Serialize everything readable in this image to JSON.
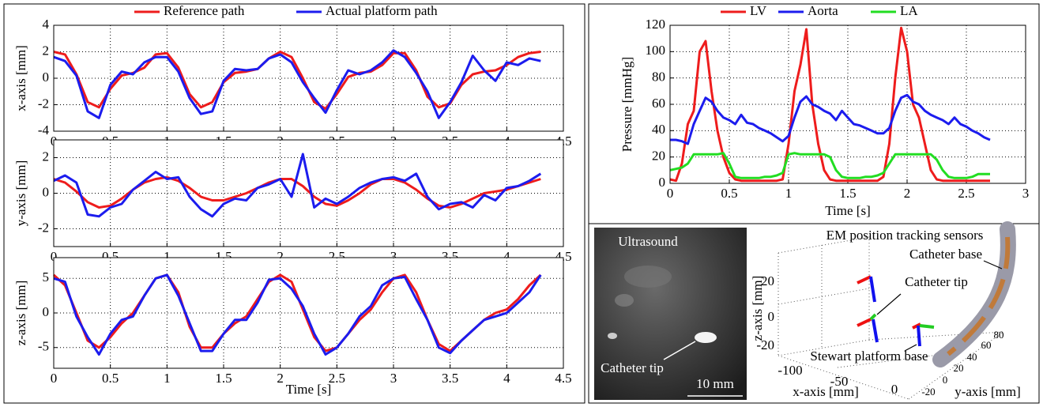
{
  "chart_data": [
    {
      "type": "line",
      "ylabel": "x-axis [mm]",
      "x": [
        0,
        0.1,
        0.2,
        0.3,
        0.4,
        0.5,
        0.6,
        0.7,
        0.8,
        0.9,
        1,
        1.1,
        1.2,
        1.3,
        1.4,
        1.5,
        1.6,
        1.7,
        1.8,
        1.9,
        2,
        2.1,
        2.2,
        2.3,
        2.4,
        2.5,
        2.6,
        2.7,
        2.8,
        2.9,
        3,
        3.1,
        3.2,
        3.3,
        3.4,
        3.5,
        3.6,
        3.7,
        3.8,
        3.9,
        4,
        4.1,
        4.2,
        4.3
      ],
      "series": [
        {
          "name": "Reference path",
          "color": "#ee1c1c",
          "values": [
            2,
            1.8,
            0.3,
            -1.8,
            -2.2,
            -0.8,
            0.2,
            0.4,
            0.8,
            1.8,
            1.9,
            0.8,
            -1.2,
            -2.2,
            -1.8,
            -0.3,
            0.4,
            0.5,
            0.7,
            1.5,
            2,
            1.6,
            0,
            -1.8,
            -2.3,
            -1.2,
            0.1,
            0.4,
            0.5,
            1,
            1.9,
            1.9,
            0.6,
            -1.4,
            -2.2,
            -1.9,
            -0.5,
            0.3,
            0.5,
            0.6,
            1,
            1.6,
            1.9,
            2
          ]
        },
        {
          "name": "Actual platform path",
          "color": "#1c1cee",
          "values": [
            1.6,
            1.3,
            0.2,
            -2.5,
            -3,
            -0.5,
            0.5,
            0.3,
            1.2,
            1.6,
            1.6,
            0.5,
            -1.5,
            -2.7,
            -2.5,
            -0.2,
            0.7,
            0.6,
            0.7,
            1.5,
            1.8,
            1.2,
            -0.3,
            -1.5,
            -2.6,
            -0.9,
            0.6,
            0.3,
            0.6,
            1.2,
            2.1,
            1.6,
            0.4,
            -1,
            -3,
            -1.8,
            -0.3,
            1.7,
            0.6,
            -0.2,
            1.2,
            1,
            1.5,
            1.3
          ]
        }
      ],
      "xlim": [
        0,
        4.5
      ],
      "ylim": [
        -4,
        4
      ],
      "xticks": [
        0,
        0.5,
        1,
        1.5,
        2,
        2.5,
        3,
        3.5,
        4,
        4.5
      ],
      "yticks": [
        -4,
        -2,
        0,
        2,
        4
      ],
      "grid": true
    },
    {
      "type": "line",
      "ylabel": "y-axis [mm]",
      "x": [
        0,
        0.1,
        0.2,
        0.3,
        0.4,
        0.5,
        0.6,
        0.7,
        0.8,
        0.9,
        1,
        1.1,
        1.2,
        1.3,
        1.4,
        1.5,
        1.6,
        1.7,
        1.8,
        1.9,
        2,
        2.1,
        2.2,
        2.3,
        2.4,
        2.5,
        2.6,
        2.7,
        2.8,
        2.9,
        3,
        3.1,
        3.2,
        3.3,
        3.4,
        3.5,
        3.6,
        3.7,
        3.8,
        3.9,
        4,
        4.1,
        4.2,
        4.3
      ],
      "series": [
        {
          "color": "#ee1c1c",
          "values": [
            0.8,
            0.6,
            0.1,
            -0.5,
            -0.8,
            -0.7,
            -0.3,
            0.2,
            0.6,
            0.8,
            0.9,
            0.7,
            0.3,
            -0.2,
            -0.4,
            -0.4,
            -0.2,
            0,
            0.3,
            0.6,
            0.8,
            0.8,
            0.4,
            -0.2,
            -0.6,
            -0.7,
            -0.4,
            0,
            0.5,
            0.8,
            0.8,
            0.6,
            0.2,
            -0.3,
            -0.7,
            -0.8,
            -0.6,
            -0.3,
            0,
            0.1,
            0.2,
            0.4,
            0.6,
            0.8
          ]
        },
        {
          "color": "#1c1cee",
          "values": [
            0.7,
            1,
            0.6,
            -1.2,
            -1.3,
            -0.8,
            -0.6,
            0.2,
            0.7,
            1.2,
            0.8,
            0.9,
            -0.2,
            -0.9,
            -1.3,
            -0.6,
            -0.3,
            -0.4,
            0.3,
            0.5,
            0.8,
            -0.2,
            2.2,
            -0.8,
            -0.3,
            -0.6,
            -0.2,
            0.3,
            0.6,
            0.8,
            0.9,
            0.7,
            1.1,
            -0.2,
            -0.9,
            -0.6,
            -0.5,
            -0.8,
            -0.1,
            -0.4,
            0.3,
            0.4,
            0.7,
            1.1
          ]
        }
      ],
      "xlim": [
        0,
        4.5
      ],
      "ylim": [
        -3,
        3
      ],
      "xticks": [
        0,
        0.5,
        1,
        1.5,
        2,
        2.5,
        3,
        3.5,
        4,
        4.5
      ],
      "yticks": [
        -2,
        0,
        2
      ],
      "grid": true
    },
    {
      "type": "line",
      "ylabel": "z-axis [mm]",
      "xlabel": "Time [s]",
      "x": [
        0,
        0.1,
        0.2,
        0.3,
        0.4,
        0.5,
        0.6,
        0.7,
        0.8,
        0.9,
        1,
        1.1,
        1.2,
        1.3,
        1.4,
        1.5,
        1.6,
        1.7,
        1.8,
        1.9,
        2,
        2.1,
        2.2,
        2.3,
        2.4,
        2.5,
        2.6,
        2.7,
        2.8,
        2.9,
        3,
        3.1,
        3.2,
        3.3,
        3.4,
        3.5,
        3.6,
        3.7,
        3.8,
        3.9,
        4,
        4.1,
        4.2,
        4.3
      ],
      "series": [
        {
          "color": "#ee1c1c",
          "values": [
            5.5,
            4,
            0,
            -4,
            -5,
            -3.5,
            -1.5,
            0,
            2.5,
            5,
            5.5,
            3,
            -2,
            -5,
            -5,
            -3,
            -1.5,
            -0.5,
            2,
            4.5,
            5.5,
            4.5,
            0.5,
            -3.5,
            -5.5,
            -5,
            -3,
            -1,
            0.5,
            3,
            5,
            5.5,
            3,
            -1,
            -4.5,
            -5.5,
            -4,
            -2.5,
            -1,
            0,
            0.5,
            2,
            4,
            5.5
          ]
        },
        {
          "color": "#1c1cee",
          "values": [
            5,
            4.5,
            -0.5,
            -3.5,
            -6,
            -3,
            -1,
            -0.5,
            2.5,
            5,
            5.5,
            2.5,
            -1.5,
            -5.5,
            -5.5,
            -3,
            -1,
            -1,
            1.5,
            4.8,
            5,
            3.5,
            1,
            -3,
            -6,
            -5,
            -3,
            -0.5,
            1,
            4,
            5,
            5.2,
            2,
            -1,
            -5,
            -5.8,
            -4,
            -2.5,
            -1,
            -0.5,
            0,
            1.5,
            3,
            5.5
          ]
        }
      ],
      "xlim": [
        0,
        4.5
      ],
      "ylim": [
        -8,
        8
      ],
      "xticks": [
        0,
        0.5,
        1,
        1.5,
        2,
        2.5,
        3,
        3.5,
        4,
        4.5
      ],
      "yticks": [
        -5,
        0,
        5
      ],
      "grid": true
    },
    {
      "type": "line",
      "ylabel": "Pressure [mmHg]",
      "xlabel": "Time [s]",
      "x": [
        0,
        0.05,
        0.1,
        0.15,
        0.2,
        0.25,
        0.3,
        0.35,
        0.4,
        0.45,
        0.5,
        0.55,
        0.6,
        0.65,
        0.7,
        0.75,
        0.8,
        0.85,
        0.9,
        0.95,
        1,
        1.05,
        1.1,
        1.15,
        1.2,
        1.25,
        1.3,
        1.35,
        1.4,
        1.45,
        1.5,
        1.55,
        1.6,
        1.65,
        1.7,
        1.75,
        1.8,
        1.85,
        1.9,
        1.95,
        2,
        2.05,
        2.1,
        2.15,
        2.2,
        2.25,
        2.3,
        2.35,
        2.4,
        2.45,
        2.5,
        2.55,
        2.6,
        2.65,
        2.7
      ],
      "series": [
        {
          "name": "LV",
          "color": "#ee1c1c",
          "values": [
            3,
            2,
            15,
            45,
            55,
            100,
            108,
            70,
            40,
            20,
            8,
            3,
            2,
            2,
            2,
            2,
            2,
            2,
            2,
            3,
            30,
            70,
            90,
            117,
            60,
            30,
            10,
            3,
            2,
            2,
            2,
            2,
            2,
            2,
            2,
            2,
            5,
            30,
            80,
            118,
            100,
            60,
            50,
            30,
            10,
            3,
            2,
            2,
            2,
            2,
            2,
            2,
            2,
            2,
            2
          ]
        },
        {
          "name": "Aorta",
          "color": "#1c1cee",
          "values": [
            33,
            33,
            32,
            30,
            45,
            55,
            65,
            62,
            55,
            50,
            48,
            45,
            52,
            46,
            45,
            42,
            40,
            38,
            35,
            32,
            36,
            50,
            62,
            66,
            60,
            58,
            55,
            53,
            48,
            55,
            50,
            45,
            44,
            42,
            40,
            38,
            38,
            42,
            55,
            65,
            67,
            62,
            60,
            55,
            52,
            50,
            48,
            45,
            50,
            45,
            43,
            40,
            38,
            35,
            33
          ]
        },
        {
          "name": "LA",
          "color": "#22dd22",
          "values": [
            10,
            11,
            12,
            15,
            22,
            22,
            22,
            22,
            22,
            23,
            15,
            5,
            4,
            4,
            4,
            4,
            5,
            5,
            6,
            8,
            22,
            23,
            22,
            22,
            22,
            22,
            22,
            20,
            10,
            5,
            4,
            4,
            4,
            5,
            5,
            6,
            8,
            15,
            22,
            22,
            22,
            22,
            22,
            22,
            22,
            18,
            10,
            5,
            4,
            4,
            4,
            5,
            7,
            7,
            7
          ]
        }
      ],
      "xlim": [
        0,
        3
      ],
      "ylim": [
        0,
        120
      ],
      "xticks": [
        0,
        0.5,
        1,
        1.5,
        2,
        2.5,
        3
      ],
      "yticks": [
        0,
        20,
        40,
        60,
        80,
        100,
        120
      ],
      "grid": true
    }
  ],
  "illustration": {
    "ultrasound_title": "Ultrasound",
    "ultrasound_label": "Catheter tip",
    "scale_bar": "10 mm",
    "plot_title": "EM position tracking sensors",
    "labels": [
      "Catheter base",
      "Catheter tip",
      "Stewart platform base"
    ],
    "z_label": "z-axis [mm]",
    "x_label": "x-axis [mm]",
    "y_label": "y-axis [mm]",
    "z_ticks": [
      20,
      0,
      -20
    ],
    "x_ticks": [
      -100,
      -50,
      0
    ],
    "y_ticks": [
      -20,
      0,
      20,
      40,
      60,
      80
    ]
  }
}
